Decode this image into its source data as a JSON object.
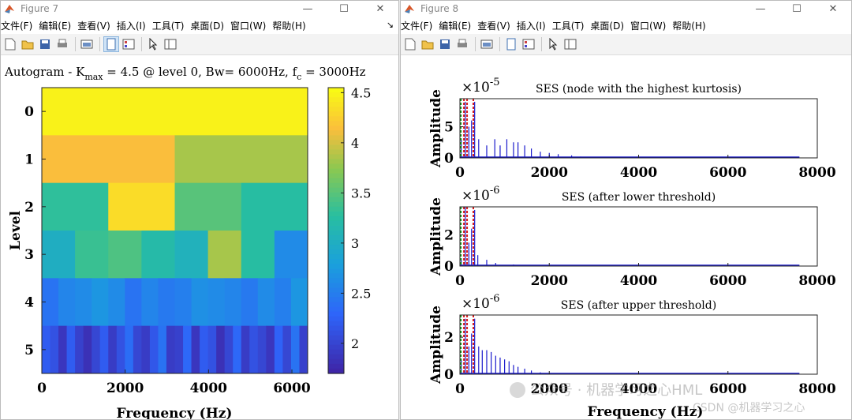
{
  "fig7": {
    "title": "Figure 7",
    "menu": [
      "文件(F)",
      "编辑(E)",
      "查看(V)",
      "插入(I)",
      "工具(T)",
      "桌面(D)",
      "窗口(W)",
      "帮助(H)"
    ],
    "plot_title": {
      "prefix": "Autogram - K",
      "sub": "max",
      "mid": " = 4.5 @ level 0, Bw= 6000Hz, f",
      "sub2": "c",
      "suffix": " = 3000Hz"
    }
  },
  "fig8": {
    "title": "Figure 8",
    "menu": [
      "文件(F)",
      "编辑(E)",
      "查看(V)",
      "插入(I)",
      "工具(T)",
      "桌面(D)",
      "窗口(W)",
      "帮助(H)"
    ]
  },
  "window_buttons": {
    "min": "—",
    "max": "☐",
    "close": "✕"
  },
  "icons": {
    "matlab": "matlab-logo-icon",
    "arrow": "toolbar-overflow-icon"
  },
  "watermark": {
    "main": "公众号 · 机器学习之心HML",
    "csdn": "CSDN @机器学习之心"
  },
  "chart_data": [
    {
      "type": "heatmap",
      "title": "Autogram - Kmax = 4.5 @ level 0, Bw= 6000Hz, fc = 3000Hz",
      "xlabel": "Frequency (Hz)",
      "ylabel": "Level",
      "xlim": [
        0,
        6000
      ],
      "xticks": [
        "0",
        "2000",
        "4000",
        "6000"
      ],
      "yticks": [
        "0",
        "1",
        "2",
        "3",
        "4",
        "5"
      ],
      "colorbar": {
        "ticks": [
          "4.5",
          "4",
          "3.5",
          "3",
          "2.5",
          "2"
        ],
        "clim": [
          1.7,
          4.55
        ],
        "colormap": "parula"
      },
      "levels": [
        [
          4.5
        ],
        [
          4.15,
          3.85
        ],
        [
          3.3,
          4.35,
          3.5,
          3.25
        ],
        [
          3.0,
          3.35,
          3.45,
          3.2,
          3.05,
          3.85,
          3.25,
          2.6
        ],
        [
          2.4,
          2.55,
          2.6,
          2.7,
          2.6,
          2.4,
          2.55,
          2.45,
          2.5,
          2.65,
          2.6,
          2.55,
          2.45,
          2.6,
          2.5,
          2.7
        ],
        [
          2.2,
          2.1,
          1.85,
          2.2,
          1.95,
          1.8,
          2.0,
          2.2,
          1.9,
          2.1,
          2.35,
          2.0,
          1.9,
          2.15,
          2.4,
          1.9,
          1.95,
          2.3,
          1.85,
          2.2,
          2.1,
          1.8,
          2.0,
          2.3,
          1.9,
          2.1,
          2.0,
          1.85,
          2.25,
          2.0,
          2.4,
          1.95
        ]
      ]
    },
    {
      "type": "line",
      "title": "SES (node with the highest kurtosis)",
      "ylabel": "Amplitude",
      "exponent": "×10",
      "exp_power": "-5",
      "xlim": [
        0,
        8000
      ],
      "ylim": [
        0,
        9.5
      ],
      "xticks": [
        "0",
        "2000",
        "4000",
        "6000",
        "8000"
      ],
      "yticks": [
        "0",
        "5"
      ],
      "peaks": [
        [
          30,
          3
        ],
        [
          120,
          9
        ],
        [
          200,
          5
        ],
        [
          260,
          6
        ],
        [
          330,
          9
        ],
        [
          420,
          3
        ],
        [
          600,
          2
        ],
        [
          780,
          3
        ],
        [
          900,
          2
        ],
        [
          1050,
          3
        ],
        [
          1200,
          2.5
        ],
        [
          1300,
          2.5
        ],
        [
          1450,
          2
        ],
        [
          1600,
          1.5
        ],
        [
          1800,
          1
        ],
        [
          2000,
          0.8
        ],
        [
          2200,
          0.6
        ],
        [
          2500,
          0.4
        ],
        [
          2700,
          0.2
        ]
      ]
    },
    {
      "type": "line",
      "title": "SES (after lower threshold)",
      "ylabel": "Amplitude",
      "exponent": "×10",
      "exp_power": "-6",
      "xlim": [
        0,
        8000
      ],
      "ylim": [
        0,
        3.8
      ],
      "xticks": [
        "0",
        "2000",
        "4000",
        "6000",
        "8000"
      ],
      "yticks": [
        "0",
        "2"
      ],
      "peaks": [
        [
          30,
          0.5
        ],
        [
          120,
          3.8
        ],
        [
          200,
          1.5
        ],
        [
          260,
          2.4
        ],
        [
          330,
          3.6
        ],
        [
          400,
          0.7
        ],
        [
          600,
          0.4
        ],
        [
          800,
          0.2
        ],
        [
          1200,
          0.1
        ]
      ]
    },
    {
      "type": "line",
      "title": "SES (after upper threshold)",
      "ylabel": "Amplitude",
      "exponent": "×10",
      "exp_power": "-6",
      "xlim": [
        0,
        8000
      ],
      "ylim": [
        0,
        3.2
      ],
      "xticks": [
        "0",
        "2000",
        "4000",
        "6000",
        "8000"
      ],
      "yticks": [
        "0",
        "2"
      ],
      "xlabel": "Frequency (Hz)",
      "peaks": [
        [
          30,
          0.8
        ],
        [
          120,
          3.0
        ],
        [
          200,
          1.5
        ],
        [
          260,
          2.2
        ],
        [
          330,
          3.0
        ],
        [
          420,
          1.5
        ],
        [
          500,
          1.3
        ],
        [
          600,
          1.3
        ],
        [
          700,
          1.2
        ],
        [
          800,
          1.0
        ],
        [
          900,
          0.9
        ],
        [
          1000,
          0.8
        ],
        [
          1100,
          0.7
        ],
        [
          1200,
          0.5
        ],
        [
          1300,
          0.4
        ],
        [
          1450,
          0.3
        ],
        [
          1600,
          0.2
        ],
        [
          1800,
          0.1
        ],
        [
          2000,
          0.05
        ]
      ]
    }
  ]
}
